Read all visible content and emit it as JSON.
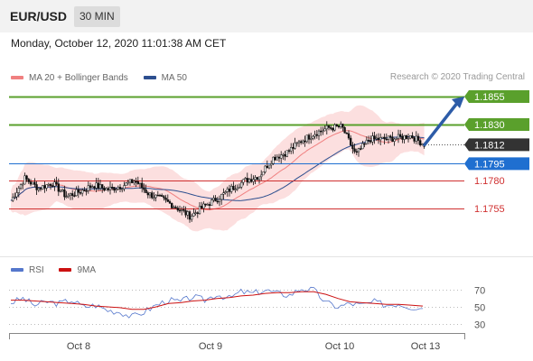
{
  "header": {
    "pair": "EUR/USD",
    "timeframe": "30 MIN"
  },
  "datetime": "Monday, October 12, 2020 11:01:38 AM CET",
  "legend": {
    "bollinger_label": "MA 20 + Bollinger Bands",
    "ma50_label": "MA 50",
    "rsi_label": "RSI",
    "ma9_label": "9MA",
    "colors": {
      "bollinger": "#f08080",
      "ma50": "#2d4f8f",
      "rsi": "#5577cc",
      "ma9": "#cc1111"
    }
  },
  "credit": "Research © 2020 Trading Central",
  "chart_data": [
    {
      "type": "candlestick",
      "title": "",
      "x_ticks": [
        "Oct 8",
        "Oct 9",
        "Oct 10",
        "Oct 13"
      ],
      "ylim": [
        1.174,
        1.1865
      ],
      "levels": [
        {
          "label": "1.1855",
          "value": 1.1855,
          "kind": "resistance-target",
          "color": "#5aa02c"
        },
        {
          "label": "1.1830",
          "value": 1.183,
          "kind": "resistance",
          "color": "#5aa02c"
        },
        {
          "label": "1.1812",
          "value": 1.1812,
          "kind": "current-price",
          "color": "#333333"
        },
        {
          "label": "1.1795",
          "value": 1.1795,
          "kind": "pivot",
          "color": "#1f6fd0"
        },
        {
          "label": "1.1780",
          "value": 1.178,
          "kind": "support",
          "color": "#d03030"
        },
        {
          "label": "1.1755",
          "value": 1.1755,
          "kind": "support",
          "color": "#d03030"
        }
      ],
      "price_path": [
        1.1762,
        1.1782,
        1.1773,
        1.1778,
        1.1766,
        1.177,
        1.1776,
        1.1772,
        1.1775,
        1.178,
        1.1768,
        1.1763,
        1.1756,
        1.1748,
        1.1757,
        1.1764,
        1.1773,
        1.178,
        1.1784,
        1.18,
        1.1805,
        1.1815,
        1.1822,
        1.1827,
        1.1828,
        1.1803,
        1.1817,
        1.1817,
        1.1818,
        1.182,
        1.1812
      ],
      "expected_path": [
        1.1812,
        1.1855
      ]
    },
    {
      "type": "line",
      "title": "",
      "y_ticks": [
        70,
        50,
        30
      ],
      "ylim": [
        25,
        77
      ],
      "series": [
        {
          "name": "RSI",
          "values": [
            55,
            60,
            52,
            56,
            54,
            58,
            50,
            52,
            46,
            44,
            38,
            44,
            52,
            58,
            56,
            62,
            58,
            65,
            60,
            68,
            66,
            70,
            66,
            64,
            72,
            70,
            55,
            50,
            54,
            52,
            56,
            52,
            54,
            50,
            48
          ]
        },
        {
          "name": "9MA",
          "values": [
            58,
            58,
            57,
            56,
            55,
            54,
            53,
            51,
            50,
            49,
            47,
            47,
            50,
            54,
            55,
            57,
            58,
            60,
            61,
            63,
            64,
            66,
            67,
            67,
            68,
            68,
            65,
            60,
            56,
            55,
            54,
            53,
            53,
            52,
            51
          ]
        }
      ]
    }
  ]
}
